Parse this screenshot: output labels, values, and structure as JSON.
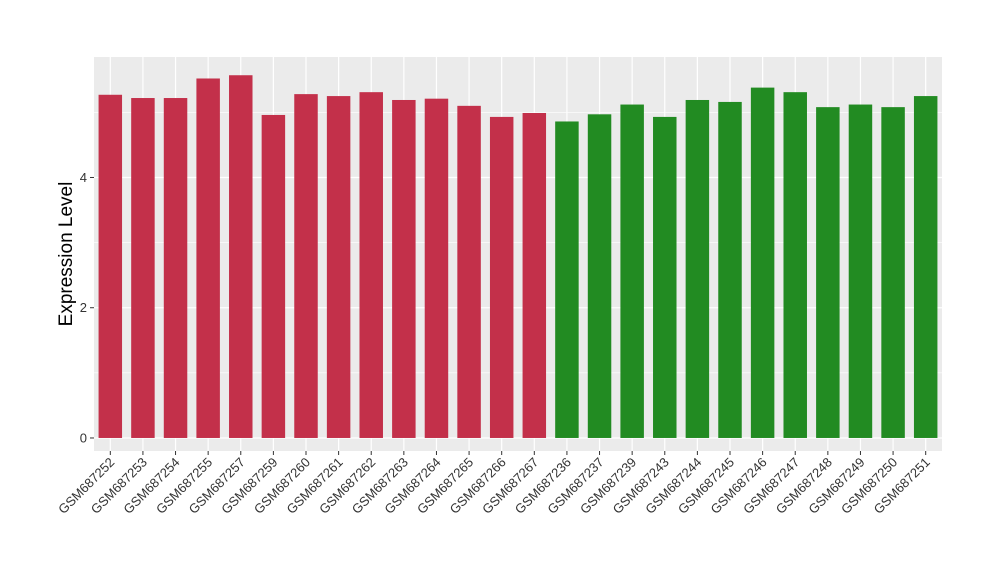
{
  "chart_data": {
    "type": "bar",
    "title": "",
    "xlabel": "",
    "ylabel": "Expression Level",
    "ylim": [
      -0.2,
      5.85
    ],
    "yticks": [
      0,
      2,
      4
    ],
    "grid": true,
    "legend": "none",
    "categories": [
      "GSM687252",
      "GSM687253",
      "GSM687254",
      "GSM687255",
      "GSM687257",
      "GSM687259",
      "GSM687260",
      "GSM687261",
      "GSM687262",
      "GSM687263",
      "GSM687264",
      "GSM687265",
      "GSM687266",
      "GSM687267",
      "GSM687236",
      "GSM687237",
      "GSM687239",
      "GSM687243",
      "GSM687244",
      "GSM687245",
      "GSM687246",
      "GSM687247",
      "GSM687248",
      "GSM687249",
      "GSM687250",
      "GSM687251"
    ],
    "values": [
      5.27,
      5.22,
      5.22,
      5.52,
      5.57,
      4.96,
      5.28,
      5.25,
      5.31,
      5.19,
      5.21,
      5.1,
      4.93,
      4.99,
      4.86,
      4.97,
      5.12,
      4.93,
      5.19,
      5.16,
      5.38,
      5.31,
      5.08,
      5.12,
      5.08,
      5.25
    ],
    "groups": [
      "a",
      "a",
      "a",
      "a",
      "a",
      "a",
      "a",
      "a",
      "a",
      "a",
      "a",
      "a",
      "a",
      "a",
      "b",
      "b",
      "b",
      "b",
      "b",
      "b",
      "b",
      "b",
      "b",
      "b",
      "b",
      "b"
    ],
    "group_colors": {
      "a": "#c3304a",
      "b": "#228b22"
    },
    "panel_background": "#ebebeb",
    "grid_color": "#ffffff"
  }
}
